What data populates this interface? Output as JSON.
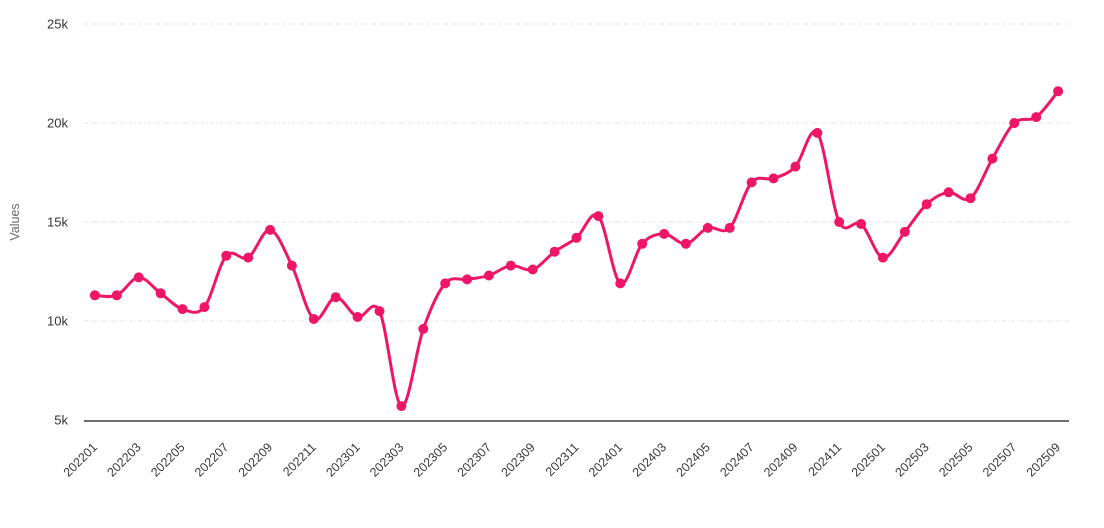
{
  "chart_data": {
    "type": "line",
    "title": "",
    "xlabel": "",
    "ylabel": "Values",
    "x": [
      "202201",
      "202202",
      "202203",
      "202204",
      "202205",
      "202206",
      "202207",
      "202208",
      "202209",
      "202210",
      "202211",
      "202212",
      "202301",
      "202302",
      "202303",
      "202304",
      "202305",
      "202306",
      "202307",
      "202308",
      "202309",
      "202310",
      "202311",
      "202312",
      "202401",
      "202402",
      "202403",
      "202404",
      "202405",
      "202406",
      "202407",
      "202408",
      "202409",
      "202410",
      "202411",
      "202412",
      "202501",
      "202502",
      "202503",
      "202504",
      "202505",
      "202506",
      "202507",
      "202508",
      "202509"
    ],
    "series": [
      {
        "name": "Values",
        "values": [
          11300,
          11300,
          12200,
          11400,
          10600,
          10700,
          13300,
          13200,
          14600,
          12800,
          10100,
          11200,
          10200,
          10500,
          5700,
          9600,
          11900,
          12100,
          12300,
          12800,
          12600,
          13500,
          14200,
          15300,
          11900,
          13900,
          14400,
          13900,
          14700,
          14700,
          17000,
          17200,
          17800,
          19500,
          15000,
          14900,
          13200,
          14500,
          15900,
          16500,
          16200,
          18200,
          20000,
          20300,
          21600
        ]
      }
    ],
    "ylim": [
      5000,
      25000
    ],
    "yticks": [
      5000,
      10000,
      15000,
      20000,
      25000
    ],
    "ytick_labels": [
      "5k",
      "10k",
      "15k",
      "20k",
      "25k"
    ],
    "xtick_labels": [
      "202201",
      "202203",
      "202205",
      "202207",
      "202209",
      "202211",
      "202301",
      "202303",
      "202305",
      "202307",
      "202309",
      "202311",
      "202401",
      "202403",
      "202405",
      "202407",
      "202409",
      "202411",
      "202501",
      "202503",
      "202505",
      "202507",
      "202509"
    ],
    "xtick_every": 2,
    "grid": "horizontal-dashed",
    "legend": "none",
    "marker": "circle",
    "colors": {
      "line": "#F01667",
      "marker": "#F01667",
      "gridline": "#E3E3E3",
      "axis_line": "#6E6E6E",
      "tick_text": "#3A3A3A",
      "axis_title_text": "#6B6B6B",
      "background": "#FFFFFF"
    }
  }
}
